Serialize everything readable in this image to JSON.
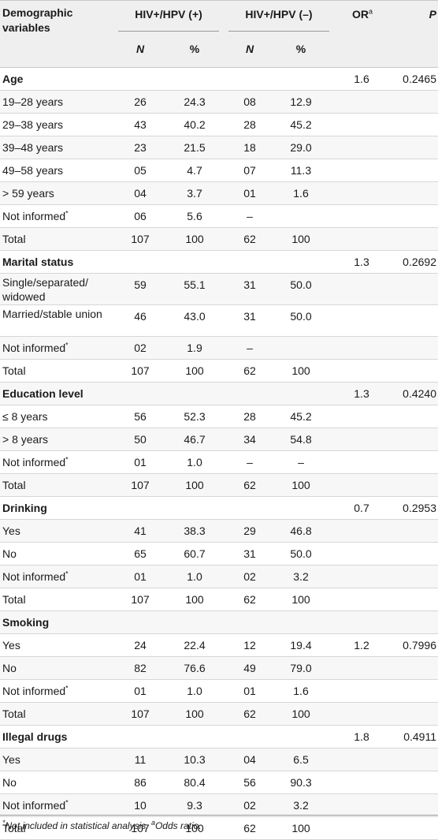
{
  "header": {
    "demographic_label": "Demographic variables",
    "group1": "HIV+/HPV (+)",
    "group2": "HIV+/HPV (–)",
    "or_label": "OR",
    "or_sup": "a",
    "p_label": "P",
    "n_label": "N",
    "pct_label": "%"
  },
  "rows": [
    {
      "label": "Age",
      "section": true,
      "or": "1.6",
      "p": "0.2465"
    },
    {
      "label": "19–28 years",
      "n1": "26",
      "p1": "24.3",
      "n2": "08",
      "p2": "12.9"
    },
    {
      "label": "29–38 years",
      "n1": "43",
      "p1": "40.2",
      "n2": "28",
      "p2": "45.2"
    },
    {
      "label": "39–48 years",
      "n1": "23",
      "p1": "21.5",
      "n2": "18",
      "p2": "29.0"
    },
    {
      "label": "49–58 years",
      "n1": "05",
      "p1": "4.7",
      "n2": "07",
      "p2": "11.3"
    },
    {
      "label": "> 59 years",
      "n1": "04",
      "p1": "3.7",
      "n2": "01",
      "p2": "1.6"
    },
    {
      "label": "Not informed",
      "star": true,
      "n1": "06",
      "p1": "5.6",
      "n2": "–",
      "p2": ""
    },
    {
      "label": "Total",
      "n1": "107",
      "p1": "100",
      "n2": "62",
      "p2": "100"
    },
    {
      "label": "Marital status",
      "section": true,
      "or": "1.3",
      "p": "0.2692"
    },
    {
      "label": "Single/separated/ widowed",
      "tall": true,
      "n1": "59",
      "p1": "55.1",
      "n2": "31",
      "p2": "50.0"
    },
    {
      "label": "Married/stable union",
      "tall": true,
      "n1": "46",
      "p1": "43.0",
      "n2": "31",
      "p2": "50.0"
    },
    {
      "label": "Not informed",
      "star": true,
      "n1": "02",
      "p1": "1.9",
      "n2": "–",
      "p2": ""
    },
    {
      "label": "Total",
      "n1": "107",
      "p1": "100",
      "n2": "62",
      "p2": "100"
    },
    {
      "label": "Education level",
      "section": true,
      "or": "1.3",
      "p": "0.4240"
    },
    {
      "label": "≤ 8 years",
      "n1": "56",
      "p1": "52.3",
      "n2": "28",
      "p2": "45.2"
    },
    {
      "label": "> 8 years",
      "n1": "50",
      "p1": "46.7",
      "n2": "34",
      "p2": "54.8"
    },
    {
      "label": "Not informed",
      "star": true,
      "n1": "01",
      "p1": "1.0",
      "n2": "–",
      "p2": "–"
    },
    {
      "label": "Total",
      "n1": "107",
      "p1": "100",
      "n2": "62",
      "p2": "100"
    },
    {
      "label": "Drinking",
      "section": true,
      "or": "0.7",
      "p": "0.2953"
    },
    {
      "label": "Yes",
      "n1": "41",
      "p1": "38.3",
      "n2": "29",
      "p2": "46.8"
    },
    {
      "label": "No",
      "n1": "65",
      "p1": "60.7",
      "n2": "31",
      "p2": "50.0"
    },
    {
      "label": "Not informed",
      "star": true,
      "n1": "01",
      "p1": "1.0",
      "n2": "02",
      "p2": "3.2"
    },
    {
      "label": "Total",
      "n1": "107",
      "p1": "100",
      "n2": "62",
      "p2": "100"
    },
    {
      "label": "Smoking",
      "section": true
    },
    {
      "label": "Yes",
      "n1": "24",
      "p1": "22.4",
      "n2": "12",
      "p2": "19.4",
      "or": "1.2",
      "p": "0.7996"
    },
    {
      "label": "No",
      "n1": "82",
      "p1": "76.6",
      "n2": "49",
      "p2": "79.0"
    },
    {
      "label": "Not informed",
      "star": true,
      "n1": "01",
      "p1": "1.0",
      "n2": "01",
      "p2": "1.6"
    },
    {
      "label": "Total",
      "n1": "107",
      "p1": "100",
      "n2": "62",
      "p2": "100"
    },
    {
      "label": "Illegal drugs",
      "section": true,
      "or": "1.8",
      "p": "0.4911"
    },
    {
      "label": "Yes",
      "n1": "11",
      "p1": "10.3",
      "n2": "04",
      "p2": "6.5"
    },
    {
      "label": "No",
      "n1": "86",
      "p1": "80.4",
      "n2": "56",
      "p2": "90.3"
    },
    {
      "label": "Not informed",
      "star": true,
      "n1": "10",
      "p1": "9.3",
      "n2": "02",
      "p2": "3.2"
    },
    {
      "label": "Total",
      "n1": "107",
      "p1": "100",
      "n2": "62",
      "p2": "100"
    }
  ],
  "footnote": {
    "star_sup": "*",
    "star_text": "Not included in statistical analysis.",
    "a_sup": "a",
    "a_text": "Odds ratio."
  }
}
